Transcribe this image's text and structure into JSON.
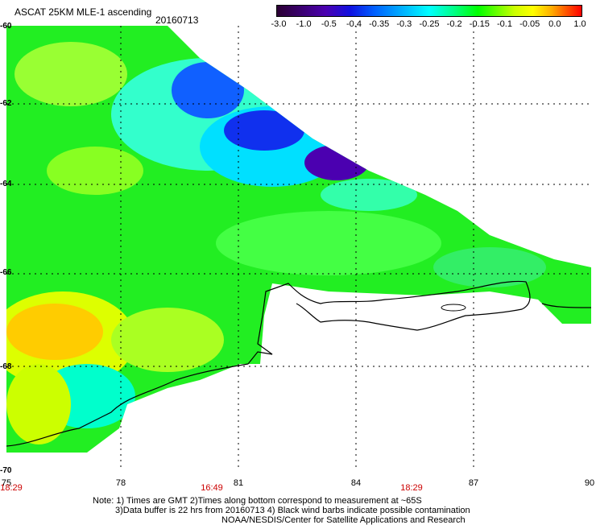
{
  "header": {
    "title": "ASCAT 25KM MLE-1 ascending",
    "date": "20160713"
  },
  "colorbar": {
    "labels": [
      "-3.0",
      "-1.0",
      "-0.5",
      "-0.4",
      "-0.35",
      "-0.3",
      "-0.25",
      "-0.2",
      "-0.15",
      "-0.1",
      "-0.05",
      "0.0",
      "1.0"
    ]
  },
  "axes": {
    "lat_labels": [
      "-60",
      "-62",
      "-64",
      "-66",
      "-68",
      "-70"
    ],
    "lon_labels": [
      "75",
      "78",
      "81",
      "84",
      "87",
      "90"
    ],
    "time_labels": [
      "18:29",
      "16:49",
      "18:29"
    ]
  },
  "notes": {
    "line1": "Note: 1) Times are GMT 2)Times along bottom correspond to measurement at ~65S",
    "line2": "3)Data buffer is 22 hrs from 20160713 4) Black wind barbs indicate possible contamination",
    "line3": "NOAA/NESDIS/Center for Satellite Applications and Research"
  },
  "colors": {
    "ocean_green": "#00ff00",
    "cyan": "#00ffff",
    "blue": "#0000ff",
    "purple": "#4b00b0",
    "yellow": "#ffff00",
    "orange": "#ff8800"
  }
}
